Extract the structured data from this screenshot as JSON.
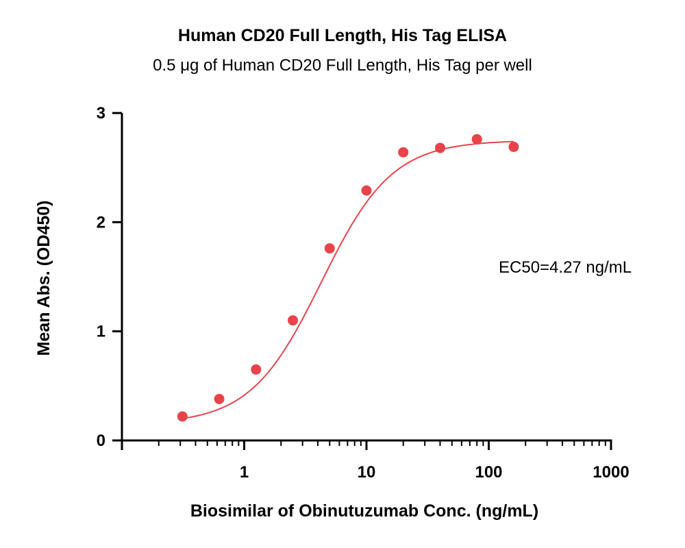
{
  "chart_data": {
    "type": "scatter",
    "title": "Human CD20 Full Length, His Tag ELISA",
    "subtitle": "0.5 μg of Human CD20 Full Length, His Tag per well",
    "xlabel": "Biosimilar of Obinutuzumab Conc. (ng/mL)",
    "ylabel": "Mean Abs. (OD450)",
    "xscale": "log",
    "xlim": [
      0.1,
      1000
    ],
    "ylim": [
      0,
      3
    ],
    "xticks": [
      1,
      10,
      100,
      1000
    ],
    "xtick_labels": [
      "1",
      "10",
      "100",
      "1000"
    ],
    "yticks": [
      0,
      1,
      2,
      3
    ],
    "ytick_labels": [
      "0",
      "1",
      "2",
      "3"
    ],
    "grid": false,
    "color": "#e8434b",
    "series": [
      {
        "x": [
          0.3125,
          0.625,
          1.25,
          2.5,
          5,
          10,
          20,
          40,
          80,
          160
        ],
        "y": [
          0.22,
          0.38,
          0.65,
          1.1,
          1.76,
          2.29,
          2.64,
          2.68,
          2.76,
          2.69
        ]
      }
    ],
    "fit": {
      "type": "4PL",
      "bottom": 0.15,
      "top": 2.75,
      "ec50": 4.27,
      "hill": 1.5
    },
    "annotations": [
      {
        "text": "EC50=4.27 ng/mL"
      }
    ]
  }
}
